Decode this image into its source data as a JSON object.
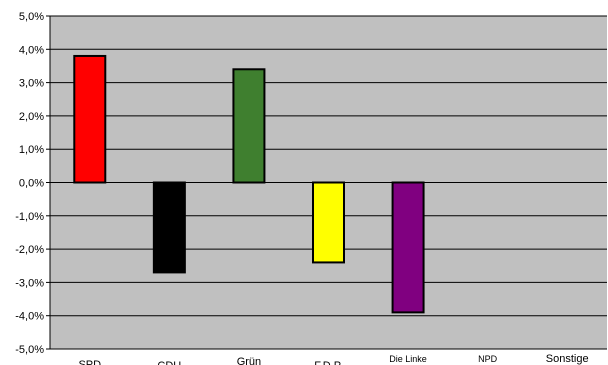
{
  "chart_data": {
    "type": "bar",
    "categories": [
      "SPD",
      "CDU",
      "Grün",
      "F.D.P.",
      "Die Linke",
      "NPD",
      "Sonstige"
    ],
    "values": [
      3.8,
      -2.7,
      3.4,
      -2.4,
      -3.9,
      0,
      0
    ],
    "colors": [
      "#ff0000",
      "#000000",
      "#3f7f2f",
      "#ffff00",
      "#800080",
      "#c0c0c0",
      "#c0c0c0"
    ],
    "ylim": [
      -5.0,
      5.0
    ],
    "yticks": [
      5.0,
      4.0,
      3.0,
      2.0,
      1.0,
      0.0,
      -1.0,
      -2.0,
      -3.0,
      -4.0,
      -5.0
    ],
    "ytick_labels": [
      "5,0%",
      "4,0%",
      "3,0%",
      "2,0%",
      "1,0%",
      "0,0%",
      "-1,0%",
      "-2,0%",
      "-3,0%",
      "-4,0%",
      "-5,0%"
    ],
    "plot_background": "#c0c0c0",
    "grid": true,
    "title": "",
    "xlabel": "",
    "ylabel": ""
  }
}
